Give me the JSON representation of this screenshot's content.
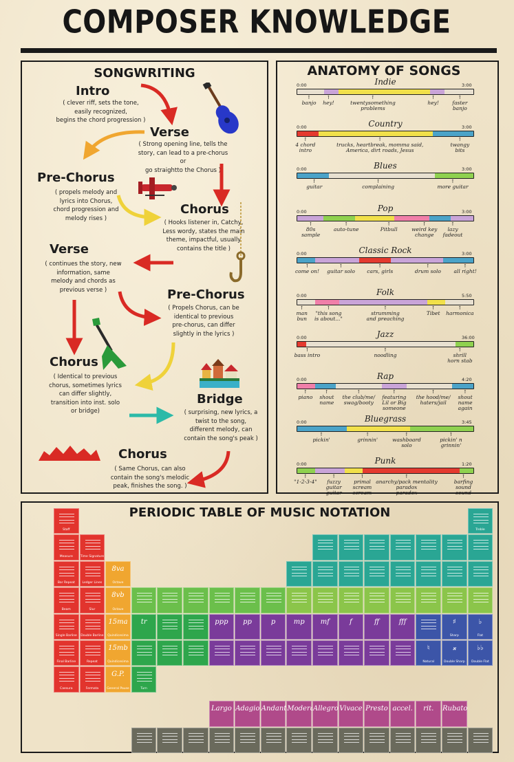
{
  "title": "COMPOSER KNOWLEDGE",
  "songwriting": {
    "heading": "SONGWRITING",
    "steps": [
      {
        "name": "Intro",
        "desc": "( clever riff, sets the tone,\neasily recognized,\nbegins the chord progression )"
      },
      {
        "name": "Verse",
        "desc": "( Strong opening line, tells the\nstory, can lead to a pre-chorus or\ngo straightto the Chorus )"
      },
      {
        "name": "Pre-Chorus",
        "desc": "( propels melody and\nlyrics into Chorus,\nchord progression and\nmelody rises )"
      },
      {
        "name": "Chorus",
        "desc": "( Hooks listener in, Catchy,\nLess wordy, states the main\ntheme, impactful, usually\ncontains the title )"
      },
      {
        "name": "Verse",
        "desc": "( continues the story, new\ninformation, same\nmelody and chords as\nprevious verse )"
      },
      {
        "name": "Pre-Chorus",
        "desc": "( Propels Chorus, can be\nidentical to previous\npre-chorus, can differ\nslightly in the lyrics )"
      },
      {
        "name": "Chorus",
        "desc": "( Identical to previous\nchorus, sometimes lyrics\ncan differ slightly,\ntransition into inst. solo\nor bridge)"
      },
      {
        "name": "Bridge",
        "desc": "( surprising, new lyrics, a\ntwist to the song,\ndifferent melody, can\ncontain the song's peak )"
      },
      {
        "name": "Chorus",
        "desc": "( Same Chorus, can also\ncontain the song's melodic\npeak, finishes the song. )"
      }
    ]
  },
  "anatomy": {
    "heading": "ANATOMY OF SONGS",
    "genres": [
      {
        "name": "Indie",
        "start": "0:00",
        "end": "3:00",
        "segs": [
          [
            "#e8e0d0",
            13
          ],
          [
            "#c9a4d8",
            7
          ],
          [
            "#f1e04a",
            45
          ],
          [
            "#c9a4d8",
            7
          ],
          [
            "#e8e0d0",
            14
          ]
        ],
        "labels": [
          [
            "banjo",
            7
          ],
          [
            "hey!",
            18
          ],
          [
            "twentysomething\nproblems",
            43
          ],
          [
            "hey!",
            77
          ],
          [
            "faster\nbanjo",
            92
          ]
        ]
      },
      {
        "name": "Country",
        "start": "0:00",
        "end": "3:00",
        "segs": [
          [
            "#e43a2f",
            12
          ],
          [
            "#f1e04a",
            65
          ],
          [
            "#4ba3c8",
            23
          ]
        ],
        "labels": [
          [
            "4 chord\nintro",
            5
          ],
          [
            "trucks, heartbreak, momma said,\nAmerica, dirt roads, Jesus",
            47
          ],
          [
            "twangy\nbits",
            92
          ]
        ]
      },
      {
        "name": "Blues",
        "start": "0:00",
        "end": "3:00",
        "segs": [
          [
            "#4ba3c8",
            18
          ],
          [
            "#e8e0d0",
            60
          ],
          [
            "#8fd14f",
            22
          ]
        ],
        "labels": [
          [
            "guitar",
            10
          ],
          [
            "complaining",
            46
          ],
          [
            "more guitar",
            88
          ]
        ]
      },
      {
        "name": "Pop",
        "start": "0:00",
        "end": "3:00",
        "segs": [
          [
            "#c9a4d8",
            15
          ],
          [
            "#8fd14f",
            18
          ],
          [
            "#f1e04a",
            22
          ],
          [
            "#f07fa9",
            20
          ],
          [
            "#4ba3c8",
            12
          ],
          [
            "#c9a4d8",
            13
          ]
        ],
        "labels": [
          [
            "80s\nsample",
            8
          ],
          [
            "auto-tune",
            28
          ],
          [
            "Pitbull",
            52
          ],
          [
            "weird key\nchange",
            72
          ],
          [
            "lazy\nfadeout",
            88
          ]
        ]
      },
      {
        "name": "Classic Rock",
        "start": "0:00",
        "end": "3:00",
        "segs": [
          [
            "#4ba3c8",
            10
          ],
          [
            "#c9a4d8",
            25
          ],
          [
            "#e43a2f",
            18
          ],
          [
            "#c9a4d8",
            30
          ],
          [
            "#4ba3c8",
            17
          ]
        ],
        "labels": [
          [
            "come on!",
            6
          ],
          [
            "guitar solo",
            25
          ],
          [
            "cars, girls",
            47
          ],
          [
            "drum solo",
            74
          ],
          [
            "all right!",
            95
          ]
        ]
      },
      {
        "name": "Folk",
        "start": "0:00",
        "end": "5:50",
        "segs": [
          [
            "#e8e0d0",
            10
          ],
          [
            "#f07fa9",
            14
          ],
          [
            "#c9a4d8",
            50
          ],
          [
            "#f1e04a",
            10
          ],
          [
            "#e8e0d0",
            16
          ]
        ],
        "labels": [
          [
            "man\nbun",
            3
          ],
          [
            "\"this song\nis about...\"",
            18
          ],
          [
            "strumming\nand preaching",
            50
          ],
          [
            "Tibet",
            77
          ],
          [
            "harmonica",
            92
          ]
        ]
      },
      {
        "name": "Jazz",
        "start": "0:00",
        "end": "36:00",
        "segs": [
          [
            "#e43a2f",
            5
          ],
          [
            "#e8e0d0",
            85
          ],
          [
            "#8fd14f",
            10
          ]
        ],
        "labels": [
          [
            "bass intro",
            6
          ],
          [
            "noodling",
            50
          ],
          [
            "shrill\nhorn stab",
            92
          ]
        ]
      },
      {
        "name": "Rap",
        "start": "0:00",
        "end": "4:20",
        "segs": [
          [
            "#f07fa9",
            10
          ],
          [
            "#4ba3c8",
            12
          ],
          [
            "#e8e0d0",
            26
          ],
          [
            "#c9a4d8",
            14
          ],
          [
            "#e8e0d0",
            26
          ],
          [
            "#4ba3c8",
            12
          ]
        ],
        "labels": [
          [
            "piano",
            5
          ],
          [
            "shout\nname",
            17
          ],
          [
            "the club/me/\nswag/booty",
            35
          ],
          [
            "featuring\nLil or Big\nsomeone",
            55
          ],
          [
            "the hood/me/\nhaters/jail",
            77
          ],
          [
            "shout\nname\nagain",
            95
          ]
        ]
      },
      {
        "name": "Bluegrass",
        "start": "0:00",
        "end": "3:45",
        "segs": [
          [
            "#4ba3c8",
            28
          ],
          [
            "#f1e04a",
            36
          ],
          [
            "#8fd14f",
            36
          ]
        ],
        "labels": [
          [
            "pickin'",
            14
          ],
          [
            "grinnin'",
            40
          ],
          [
            "washboard\nsolo",
            62
          ],
          [
            "pickin' n\ngrinnin'",
            87
          ]
        ]
      },
      {
        "name": "Punk",
        "start": "0:00",
        "end": "1:20",
        "segs": [
          [
            "#8fd14f",
            10
          ],
          [
            "#c9a4d8",
            17
          ],
          [
            "#f1e04a",
            10
          ],
          [
            "#e43a2f",
            55
          ],
          [
            "#8fd14f",
            8
          ]
        ],
        "labels": [
          [
            "\"1-2-3-4\"",
            5
          ],
          [
            "fuzzy\nguitar\nguitar",
            21
          ],
          [
            "primal\nscream\nscream",
            37
          ],
          [
            "anarchy/pack mentality\nparadox\nparadox",
            62
          ],
          [
            "barfing\nsound\nsound",
            94
          ]
        ]
      }
    ]
  },
  "periodic": {
    "heading": "PERIODIC TABLE OF MUSIC NOTATION",
    "rows": [
      [
        [
          "Staff",
          "",
          "#e2342d",
          0
        ]
      ],
      [
        [
          "Measure",
          "",
          "#e2342d",
          0
        ],
        [
          "Time Signature",
          "",
          "#e2342d",
          1
        ]
      ],
      [
        [
          "Bar Repeat",
          "",
          "#e2342d",
          0
        ],
        [
          "Ledger Lines",
          "",
          "#e2342d",
          1
        ],
        [
          "Octave",
          "8va",
          "#f0a630",
          2
        ]
      ],
      [
        [
          "Beam",
          "",
          "#e2342d",
          0
        ],
        [
          "Slur",
          "",
          "#e2342d",
          1
        ],
        [
          "Octave",
          "8vb",
          "#f0a630",
          2
        ]
      ],
      [
        [
          "Single Barline",
          "",
          "#e2342d",
          0
        ],
        [
          "Double Barline",
          "",
          "#e2342d",
          1
        ],
        [
          "Quindicesima",
          "15ma",
          "#f0a630",
          2
        ]
      ],
      [
        [
          "Final Barline",
          "",
          "#e2342d",
          0
        ],
        [
          "Repeat",
          "",
          "#e2342d",
          1
        ],
        [
          "Quindicesima",
          "15mb",
          "#f0a630",
          2
        ]
      ],
      [
        [
          "Caesura",
          "",
          "#e2342d",
          0
        ],
        [
          "Fermata",
          "",
          "#e2342d",
          1
        ],
        [
          "General Pause",
          "G.P.",
          "#f0a630",
          2
        ]
      ]
    ],
    "dynamics": [
      "ppp",
      "pp",
      "p",
      "mp",
      "mf",
      "f",
      "ff",
      "fff"
    ],
    "tempo": [
      "Largo",
      "Adagio",
      "Andante",
      "Moderato",
      "Allegro",
      "Vivace",
      "Presto",
      "accel.",
      "rit.",
      "Rubato"
    ],
    "sharp_flat": [
      "Sharp",
      "Flat",
      "Natural",
      "Double Sharp",
      "Double Flat"
    ]
  }
}
